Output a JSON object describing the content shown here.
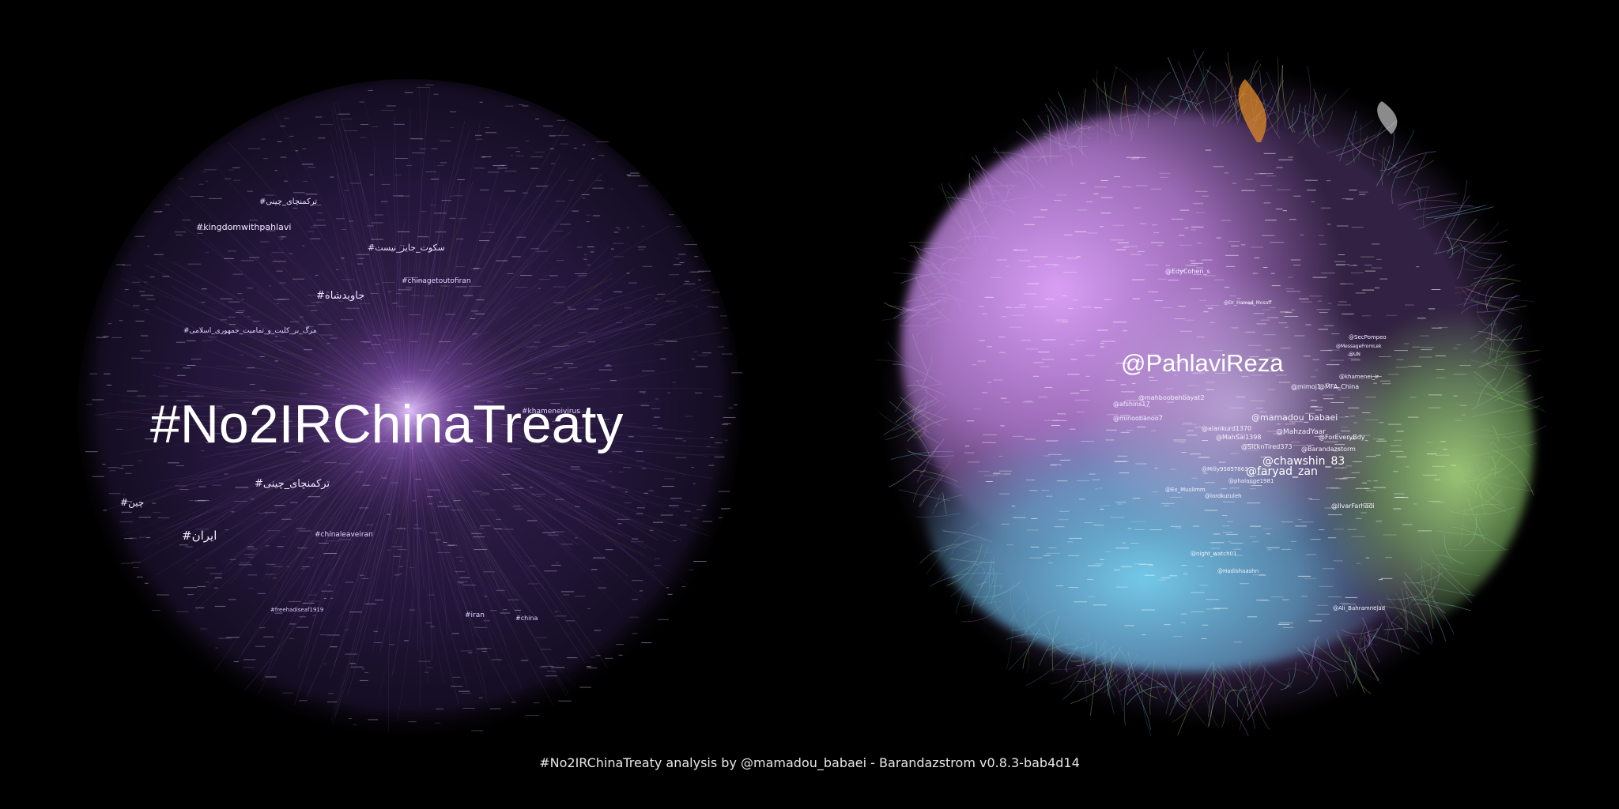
{
  "footer_text": "#No2IRChinaTreaty analysis by @mamadou_babaei - Barandazstrom v0.8.3-bab4d14",
  "colors": {
    "background": "#000000",
    "hashtag_graph_main": "#b07ad8",
    "mention_graph_pink": "#d49af0",
    "mention_graph_blue": "#6fc6ea",
    "mention_graph_green": "#8fcf6a",
    "mention_graph_orange": "#e08a2a"
  },
  "left_graph": {
    "main_label": "#No2IRChinaTreaty",
    "labels": [
      "#kingdomwithpahlavi",
      "#ترکمنچای_چینی",
      "#سکوت_جایز_نیست",
      "#جاویدشاه",
      "#chinagetoutofiran",
      "#مرگ_بر_کلیت_و_تمامیت_جمهوری_اسلامی",
      "#khameneivirus",
      "#ترکمنچای_چینی",
      "#چین",
      "#ایران",
      "#chinaleaveiran",
      "#iran",
      "#china",
      "#freehadiseaf1919"
    ]
  },
  "right_graph": {
    "main_label": "@PahlaviReza",
    "labels": [
      "@EdyCohen_s",
      "@Dr_Hamed_Mosaff",
      "@SecPompeo",
      "@MessageFromLek",
      "@UN",
      "@khamenei_ir",
      "@mimoj1",
      "@MFA_China",
      "@mahboobehbayat2",
      "@afshins17",
      "@minoobanoo7",
      "@alankurd1370",
      "@mamadou_babaei",
      "@MahSal1398",
      "@MahzadYaar",
      "@ForEveryBdy_",
      "@SicknTired373",
      "@Barandazstorm",
      "@chawshin_83",
      "@faryad_zan",
      "@Milly95857863",
      "@phalange1981",
      "@lordkutuleh",
      "@Ex_Muslimm",
      "@IlvarFarhadi",
      "@night_watch01",
      "@Hadishaashn",
      "@Ali_Bahramnejad"
    ]
  }
}
